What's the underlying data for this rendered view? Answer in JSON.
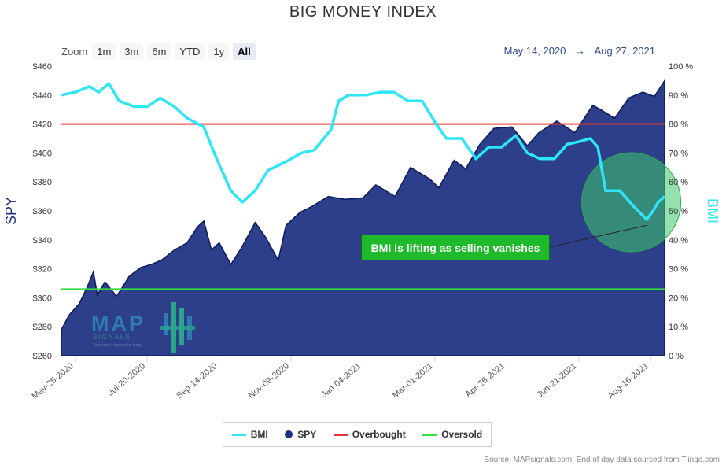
{
  "chart_data": {
    "type": "area",
    "title": "BIG MONEY INDEX",
    "y_left_label": "SPY",
    "y_right_label": "BMI",
    "y_left_ticks": [
      "$260",
      "$280",
      "$300",
      "$320",
      "$340",
      "$360",
      "$380",
      "$400",
      "$420",
      "$440",
      "$460"
    ],
    "y_right_ticks": [
      "0 %",
      "10 %",
      "20 %",
      "30 %",
      "40 %",
      "50 %",
      "60 %",
      "70 %",
      "80 %",
      "90 %",
      "100 %"
    ],
    "y_left_range": [
      260,
      460
    ],
    "y_right_range": [
      0,
      100
    ],
    "x_ticks": [
      "May-25-2020",
      "Jul-20-2020",
      "Sep-14-2020",
      "Nov-09-2020",
      "Jan-04-2021",
      "Mar-01-2021",
      "Apr-26-2021",
      "Jun-21-2021",
      "Aug-16-2021"
    ],
    "x_range": [
      "2020-05-14",
      "2021-08-27"
    ],
    "series": [
      {
        "name": "SPY",
        "axis": "left",
        "color": "#2d3f8b",
        "points": [
          [
            "2020-05-14",
            278
          ],
          [
            "2020-05-20",
            288
          ],
          [
            "2020-05-28",
            296
          ],
          [
            "2020-06-03",
            307
          ],
          [
            "2020-06-08",
            318
          ],
          [
            "2020-06-11",
            302
          ],
          [
            "2020-06-17",
            311
          ],
          [
            "2020-06-26",
            301
          ],
          [
            "2020-07-06",
            315
          ],
          [
            "2020-07-15",
            321
          ],
          [
            "2020-07-23",
            323
          ],
          [
            "2020-07-31",
            326
          ],
          [
            "2020-08-10",
            333
          ],
          [
            "2020-08-20",
            338
          ],
          [
            "2020-08-28",
            349
          ],
          [
            "2020-09-02",
            353
          ],
          [
            "2020-09-08",
            333
          ],
          [
            "2020-09-14",
            338
          ],
          [
            "2020-09-23",
            323
          ],
          [
            "2020-10-01",
            334
          ],
          [
            "2020-10-12",
            352
          ],
          [
            "2020-10-20",
            342
          ],
          [
            "2020-10-30",
            326
          ],
          [
            "2020-11-05",
            350
          ],
          [
            "2020-11-16",
            359
          ],
          [
            "2020-11-25",
            363
          ],
          [
            "2020-12-08",
            370
          ],
          [
            "2020-12-21",
            368
          ],
          [
            "2021-01-04",
            369
          ],
          [
            "2021-01-14",
            378
          ],
          [
            "2021-01-29",
            370
          ],
          [
            "2021-02-10",
            390
          ],
          [
            "2021-02-25",
            382
          ],
          [
            "2021-03-04",
            376
          ],
          [
            "2021-03-16",
            395
          ],
          [
            "2021-03-25",
            389
          ],
          [
            "2021-04-05",
            406
          ],
          [
            "2021-04-16",
            417
          ],
          [
            "2021-04-30",
            418
          ],
          [
            "2021-05-12",
            405
          ],
          [
            "2021-05-21",
            414
          ],
          [
            "2021-06-04",
            422
          ],
          [
            "2021-06-18",
            414
          ],
          [
            "2021-07-02",
            433
          ],
          [
            "2021-07-08",
            430
          ],
          [
            "2021-07-19",
            424
          ],
          [
            "2021-07-30",
            438
          ],
          [
            "2021-08-10",
            442
          ],
          [
            "2021-08-19",
            439
          ],
          [
            "2021-08-27",
            450
          ]
        ]
      },
      {
        "name": "BMI",
        "axis": "right",
        "color": "#2ee6f5",
        "points": [
          [
            "2020-05-14",
            90
          ],
          [
            "2020-05-25",
            91
          ],
          [
            "2020-06-05",
            93
          ],
          [
            "2020-06-12",
            91
          ],
          [
            "2020-06-20",
            94
          ],
          [
            "2020-06-28",
            88
          ],
          [
            "2020-07-10",
            86
          ],
          [
            "2020-07-20",
            86
          ],
          [
            "2020-07-30",
            89
          ],
          [
            "2020-08-10",
            86
          ],
          [
            "2020-08-20",
            82
          ],
          [
            "2020-09-02",
            79
          ],
          [
            "2020-09-12",
            68
          ],
          [
            "2020-09-23",
            57
          ],
          [
            "2020-10-02",
            53
          ],
          [
            "2020-10-12",
            57
          ],
          [
            "2020-10-22",
            64
          ],
          [
            "2020-11-05",
            67
          ],
          [
            "2020-11-17",
            70
          ],
          [
            "2020-11-27",
            71
          ],
          [
            "2020-12-10",
            78
          ],
          [
            "2020-12-16",
            88
          ],
          [
            "2020-12-24",
            90
          ],
          [
            "2021-01-06",
            90
          ],
          [
            "2021-01-18",
            91
          ],
          [
            "2021-01-28",
            91
          ],
          [
            "2021-02-08",
            88
          ],
          [
            "2021-02-19",
            88
          ],
          [
            "2021-03-02",
            80
          ],
          [
            "2021-03-10",
            75
          ],
          [
            "2021-03-22",
            75
          ],
          [
            "2021-04-02",
            68
          ],
          [
            "2021-04-12",
            72
          ],
          [
            "2021-04-22",
            72
          ],
          [
            "2021-05-03",
            76
          ],
          [
            "2021-05-12",
            70
          ],
          [
            "2021-05-22",
            68
          ],
          [
            "2021-06-02",
            68
          ],
          [
            "2021-06-12",
            73
          ],
          [
            "2021-06-22",
            74
          ],
          [
            "2021-06-30",
            75
          ],
          [
            "2021-07-06",
            72
          ],
          [
            "2021-07-12",
            57
          ],
          [
            "2021-07-23",
            57
          ],
          [
            "2021-08-02",
            52
          ],
          [
            "2021-08-13",
            47
          ],
          [
            "2021-08-18",
            50
          ],
          [
            "2021-08-22",
            53
          ],
          [
            "2021-08-27",
            55
          ]
        ]
      }
    ],
    "reference_lines": [
      {
        "name": "Overbought",
        "value": 80,
        "axis": "right",
        "color": "#e53935"
      },
      {
        "name": "Oversold",
        "value": 23,
        "axis": "right",
        "color": "#33dd44"
      }
    ],
    "annotation": {
      "text": "BMI is lifting as selling vanishes",
      "target_date": "2021-08-13",
      "target_value": 45
    },
    "legend": [
      {
        "name": "BMI",
        "color": "#2ee6f5",
        "marker": "line"
      },
      {
        "name": "SPY",
        "color": "#1f2f7a",
        "marker": "dot"
      },
      {
        "name": "Overbought",
        "color": "#e53935",
        "marker": "line"
      },
      {
        "name": "Oversold",
        "color": "#33dd44",
        "marker": "line"
      }
    ],
    "legend_position": "bottom-center",
    "grid": false
  },
  "zoom": {
    "label": "Zoom",
    "buttons": [
      "1m",
      "3m",
      "6m",
      "YTD",
      "1y",
      "All"
    ],
    "selected": "All"
  },
  "date_range": {
    "from": "May 14, 2020",
    "arrow": "→",
    "to": "Aug 27, 2021"
  },
  "logo": {
    "main": "MAP",
    "sub": "SIGNALS",
    "tagline": "Tomorrow's top stocks today"
  },
  "source": "Source: MAPsignals.com, End of day data sourced from Tiingo.com"
}
